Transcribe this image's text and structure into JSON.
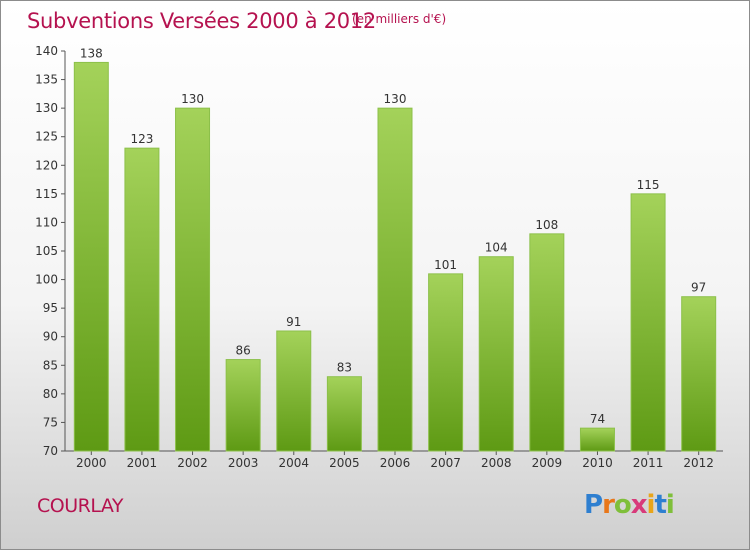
{
  "title": "Subventions Versées 2000 à 2012",
  "subtitle": "(en milliers d'€)",
  "place": "COURLAY",
  "brand": {
    "letters": [
      "P",
      "r",
      "o",
      "x",
      "i",
      "t",
      "i"
    ],
    "colors": [
      "#2e7fd0",
      "#e8771a",
      "#7fbf3a",
      "#d83a7a",
      "#e8a51a",
      "#2e7fd0",
      "#7fbf3a"
    ]
  },
  "colors": {
    "bar_top": "#a4d25a",
    "bar_bottom": "#5e9a14",
    "accent": "#b5124f"
  },
  "chart_data": {
    "type": "bar",
    "title": "Subventions Versées 2000 à 2012",
    "subtitle": "(en milliers d'€)",
    "categories": [
      "2000",
      "2001",
      "2002",
      "2003",
      "2004",
      "2005",
      "2006",
      "2007",
      "2008",
      "2009",
      "2010",
      "2011",
      "2012"
    ],
    "values": [
      138,
      123,
      130,
      86,
      91,
      83,
      130,
      101,
      104,
      108,
      74,
      115,
      97
    ],
    "ylim": [
      70,
      140
    ],
    "yticks": [
      70,
      75,
      80,
      85,
      90,
      95,
      100,
      105,
      110,
      115,
      120,
      125,
      130,
      135,
      140
    ],
    "grid": false,
    "data_labels": true
  }
}
